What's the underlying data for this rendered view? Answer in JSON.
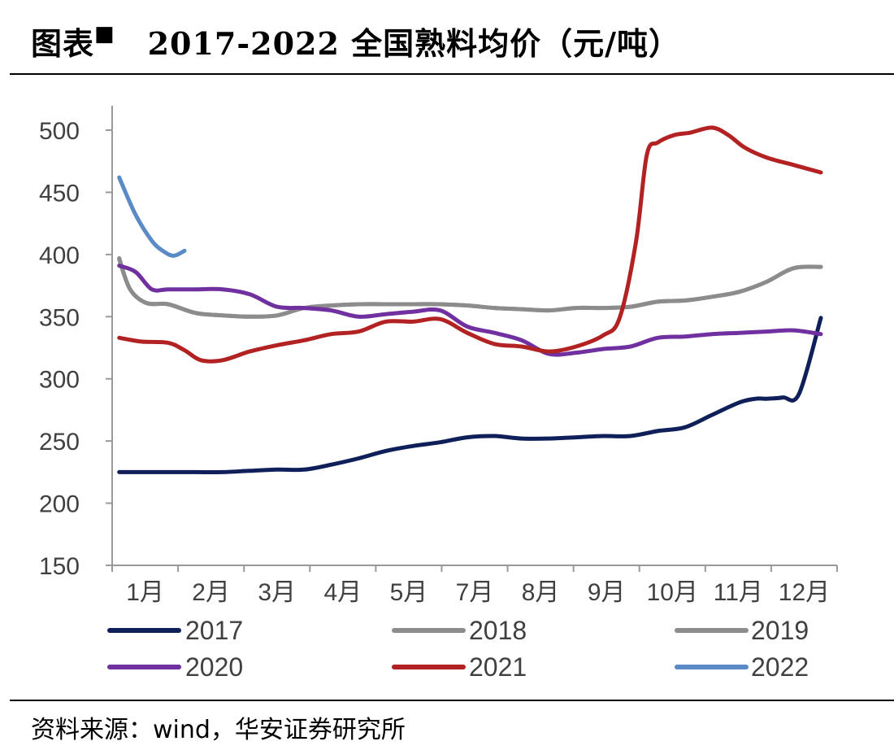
{
  "header": {
    "label": "图表",
    "marker": "■",
    "title": "2017-2022 全国熟料均价（元/吨）"
  },
  "footer": {
    "source": "资料来源：wind，华安证券研究所"
  },
  "chart_data": {
    "type": "line",
    "title": "2017-2022 全国熟料均价（元/吨）",
    "xlabel": "",
    "ylabel": "",
    "ylim": [
      150,
      520
    ],
    "yticks": [
      150,
      200,
      250,
      300,
      350,
      400,
      450,
      500
    ],
    "x_tick_labels": [
      "1月",
      "2月",
      "3月",
      "4月",
      "5月",
      "7月",
      "8月",
      "9月",
      "10月",
      "11月",
      "12月"
    ],
    "xlim": [
      0,
      13
    ],
    "grid": false,
    "legend_position": "bottom",
    "series": [
      {
        "name": "2017",
        "color": "#0f1f5a",
        "x": [
          0.1,
          0.5,
          1.0,
          1.5,
          2.0,
          2.5,
          3.0,
          3.5,
          4.0,
          4.5,
          5.0,
          5.5,
          6.0,
          6.5,
          7.0,
          7.5,
          8.0,
          8.5,
          9.0,
          9.5,
          10.0,
          10.5,
          11.0,
          11.5,
          11.8,
          12.0,
          12.3,
          12.6,
          13.0
        ],
        "y": [
          225,
          225,
          225,
          225,
          225,
          226,
          227,
          227,
          231,
          236,
          242,
          246,
          249,
          253,
          254,
          252,
          252,
          253,
          254,
          254,
          258,
          261,
          271,
          281,
          284,
          284,
          285,
          288,
          349
        ]
      },
      {
        "name": "2018",
        "color": "#8c8c8c",
        "x": [
          0.1,
          0.3,
          0.6,
          1.0,
          1.5,
          2.0,
          2.5,
          3.0,
          3.5,
          4.0,
          4.5,
          5.0,
          5.5,
          6.0,
          6.5,
          7.0,
          7.5,
          8.0,
          8.5,
          9.0,
          9.5,
          10.0,
          10.5,
          11.0,
          11.5,
          12.0,
          12.5,
          13.0
        ],
        "y": [
          397,
          372,
          361,
          360,
          353,
          351,
          350,
          351,
          357,
          359,
          360,
          360,
          360,
          360,
          359,
          357,
          356,
          355,
          357,
          357,
          358,
          362,
          363,
          366,
          370,
          378,
          389,
          390
        ]
      },
      {
        "name": "2019",
        "color": "#8c8c8c",
        "x": [
          0.1,
          0.3,
          0.6,
          1.0,
          1.5,
          2.0,
          2.5,
          3.0,
          3.5,
          4.0,
          4.5,
          5.0,
          5.5,
          6.0,
          6.5,
          7.0,
          7.5,
          8.0,
          8.5,
          9.0,
          9.5,
          10.0,
          10.5,
          11.0,
          11.5,
          12.0,
          12.5,
          13.0
        ],
        "y": [
          396,
          372,
          361,
          360,
          353,
          351,
          350,
          351,
          357,
          359,
          360,
          360,
          360,
          360,
          359,
          357,
          356,
          355,
          357,
          357,
          358,
          362,
          363,
          366,
          370,
          378,
          389,
          390
        ]
      },
      {
        "name": "2020",
        "color": "#7030a0",
        "x": [
          0.1,
          0.4,
          0.7,
          1.0,
          1.5,
          2.0,
          2.5,
          3.0,
          3.5,
          4.0,
          4.5,
          5.0,
          5.5,
          6.0,
          6.5,
          7.0,
          7.5,
          8.0,
          8.5,
          9.0,
          9.5,
          10.0,
          10.5,
          11.0,
          11.5,
          12.0,
          12.5,
          13.0
        ],
        "y": [
          391,
          386,
          372,
          372,
          372,
          372,
          368,
          358,
          357,
          355,
          350,
          352,
          354,
          355,
          342,
          337,
          331,
          320,
          321,
          324,
          326,
          333,
          334,
          336,
          337,
          338,
          339,
          336
        ]
      },
      {
        "name": "2021",
        "color": "#b22222",
        "x": [
          0.1,
          0.5,
          1.0,
          1.3,
          1.6,
          2.0,
          2.5,
          3.0,
          3.5,
          4.0,
          4.5,
          5.0,
          5.5,
          6.0,
          6.5,
          7.0,
          7.5,
          8.0,
          8.5,
          9.0,
          9.3,
          9.6,
          9.8,
          10.0,
          10.3,
          10.6,
          11.0,
          11.3,
          11.6,
          12.0,
          12.5,
          13.0
        ],
        "y": [
          333,
          330,
          329,
          323,
          315,
          315,
          322,
          327,
          331,
          336,
          338,
          346,
          346,
          348,
          337,
          328,
          326,
          322,
          326,
          335,
          349,
          410,
          480,
          490,
          496,
          498,
          502,
          496,
          486,
          478,
          472,
          466
        ]
      },
      {
        "name": "2022",
        "color": "#5b8bc6",
        "x": [
          0.1,
          0.4,
          0.7,
          0.9,
          1.1,
          1.3
        ],
        "y": [
          462,
          432,
          411,
          403,
          399,
          403
        ]
      }
    ]
  },
  "colors": {
    "axis": "#999999",
    "tick_text": "#404040"
  }
}
